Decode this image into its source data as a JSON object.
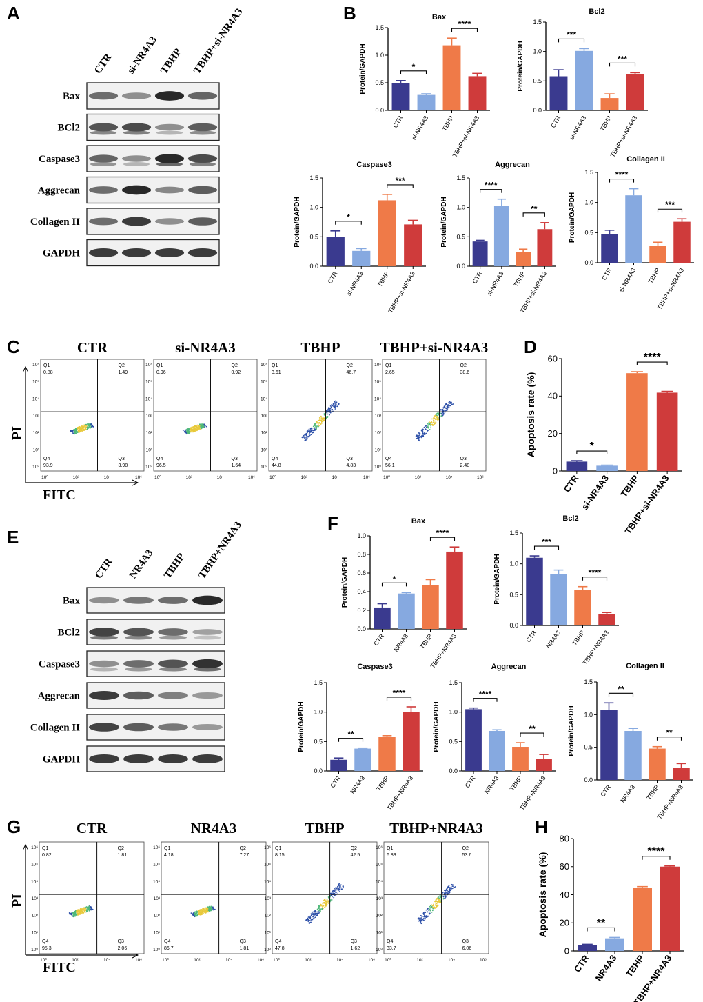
{
  "panel_letters": [
    "A",
    "B",
    "C",
    "D",
    "E",
    "F",
    "G",
    "H"
  ],
  "colors": {
    "navy": "#3a3a8f",
    "lightblue": "#86a9e0",
    "orange": "#ef7a48",
    "red": "#cf3b3b"
  },
  "blotA": {
    "lanes": [
      "CTR",
      "si-NR4A3",
      "TBHP",
      "TBHP+si-NR4A3"
    ],
    "rows": [
      {
        "label": "Bax",
        "intensity": [
          0.55,
          0.35,
          0.95,
          0.6
        ]
      },
      {
        "label": "BCl2",
        "intensity": [
          0.7,
          0.75,
          0.35,
          0.65
        ]
      },
      {
        "label": "Caspase3",
        "intensity": [
          0.6,
          0.35,
          0.95,
          0.75
        ]
      },
      {
        "label": "Aggrecan",
        "intensity": [
          0.55,
          0.95,
          0.4,
          0.65
        ]
      },
      {
        "label": "Collagen II",
        "intensity": [
          0.55,
          0.85,
          0.35,
          0.65
        ]
      },
      {
        "label": "GAPDH",
        "intensity": [
          0.85,
          0.85,
          0.85,
          0.85
        ]
      }
    ]
  },
  "blotE": {
    "lanes": [
      "CTR",
      "NR4A3",
      "TBHP",
      "TBHP+NR4A3"
    ],
    "rows": [
      {
        "label": "Bax",
        "intensity": [
          0.35,
          0.5,
          0.55,
          0.95
        ]
      },
      {
        "label": "BCl2",
        "intensity": [
          0.8,
          0.7,
          0.55,
          0.25
        ]
      },
      {
        "label": "Caspase3",
        "intensity": [
          0.35,
          0.55,
          0.7,
          0.9
        ]
      },
      {
        "label": "Aggrecan",
        "intensity": [
          0.85,
          0.65,
          0.45,
          0.3
        ]
      },
      {
        "label": "Collagen II",
        "intensity": [
          0.8,
          0.65,
          0.5,
          0.3
        ]
      },
      {
        "label": "GAPDH",
        "intensity": [
          0.85,
          0.85,
          0.85,
          0.85
        ]
      }
    ]
  },
  "flowC": {
    "axis_y": "PI",
    "axis_x": "FITC",
    "titles": [
      "CTR",
      "si-NR4A3",
      "TBHP",
      "TBHP+si-NR4A3"
    ],
    "quads": [
      {
        "q1": "0.88",
        "q2": "1.49",
        "q3": "3.98",
        "q4": "93.9"
      },
      {
        "q1": "0.96",
        "q2": "0.92",
        "q3": "1.64",
        "q4": "96.5"
      },
      {
        "q1": "3.61",
        "q2": "46.7",
        "q3": "4.83",
        "q4": "44.8"
      },
      {
        "q1": "2.65",
        "q2": "38.6",
        "q3": "2.48",
        "q4": "56.1"
      }
    ]
  },
  "flowG": {
    "axis_y": "PI",
    "axis_x": "FITC",
    "titles": [
      "CTR",
      "NR4A3",
      "TBHP",
      "TBHP+NR4A3"
    ],
    "quads": [
      {
        "q1": "0.82",
        "q2": "1.81",
        "q3": "2.06",
        "q4": "95.3"
      },
      {
        "q1": "4.18",
        "q2": "7.27",
        "q3": "1.81",
        "q4": "86.7"
      },
      {
        "q1": "8.15",
        "q2": "42.5",
        "q3": "1.62",
        "q4": "47.8"
      },
      {
        "q1": "6.83",
        "q2": "53.6",
        "q3": "6.06",
        "q4": "33.7"
      }
    ]
  },
  "chart_data": [
    {
      "id": "B-Bax",
      "type": "bar",
      "title": "Bax",
      "ylabel": "Protein/GAPDH",
      "ylim": [
        0,
        1.5
      ],
      "ticks": [
        "0.0",
        "0.5",
        "1.0",
        "1.5"
      ],
      "categories": [
        "CTR",
        "si-NR4A3",
        "TBHP",
        "TBHP+si-NR4A3"
      ],
      "values": [
        0.5,
        0.28,
        1.18,
        0.62
      ],
      "errors": [
        0.04,
        0.02,
        0.13,
        0.05
      ],
      "significance": [
        {
          "pair": [
            0,
            1
          ],
          "label": "*"
        },
        {
          "pair": [
            2,
            3
          ],
          "label": "****"
        }
      ]
    },
    {
      "id": "B-Bcl2",
      "type": "bar",
      "title": "Bcl2",
      "ylabel": "Protein/GAPDH",
      "ylim": [
        0,
        1.5
      ],
      "ticks": [
        "0.0",
        "0.5",
        "1.0",
        "1.5"
      ],
      "categories": [
        "CTR",
        "si-NR4A3",
        "TBHP",
        "TBHP+si-NR4A3"
      ],
      "values": [
        0.58,
        1.01,
        0.21,
        0.62
      ],
      "errors": [
        0.11,
        0.04,
        0.07,
        0.02
      ],
      "significance": [
        {
          "pair": [
            0,
            1
          ],
          "label": "***"
        },
        {
          "pair": [
            2,
            3
          ],
          "label": "***"
        }
      ]
    },
    {
      "id": "B-Caspase3",
      "type": "bar",
      "title": "Caspase3",
      "ylabel": "Protein/GAPDH",
      "ylim": [
        0,
        1.5
      ],
      "ticks": [
        "0.0",
        "0.5",
        "1.0",
        "1.5"
      ],
      "categories": [
        "CTR",
        "si-NR4A3",
        "TBHP",
        "TBHP+si-NR4A3"
      ],
      "values": [
        0.5,
        0.26,
        1.12,
        0.71
      ],
      "errors": [
        0.1,
        0.04,
        0.1,
        0.07
      ],
      "significance": [
        {
          "pair": [
            0,
            1
          ],
          "label": "*"
        },
        {
          "pair": [
            2,
            3
          ],
          "label": "***"
        }
      ]
    },
    {
      "id": "B-Aggrecan",
      "type": "bar",
      "title": "Aggrecan",
      "ylabel": "Protein/GAPDH",
      "ylim": [
        0,
        1.5
      ],
      "ticks": [
        "0.0",
        "0.5",
        "1.0",
        "1.5"
      ],
      "categories": [
        "CTR",
        "si-NR4A3",
        "TBHP",
        "TBHP+si-NR4A3"
      ],
      "values": [
        0.42,
        1.03,
        0.24,
        0.63
      ],
      "errors": [
        0.02,
        0.11,
        0.05,
        0.11
      ],
      "significance": [
        {
          "pair": [
            0,
            1
          ],
          "label": "****"
        },
        {
          "pair": [
            2,
            3
          ],
          "label": "**"
        }
      ]
    },
    {
      "id": "B-CollagenII",
      "type": "bar",
      "title": "Collagen II",
      "ylabel": "Protein/GAPDH",
      "ylim": [
        0,
        1.5
      ],
      "ticks": [
        "0.0",
        "0.5",
        "1.0",
        "1.5"
      ],
      "categories": [
        "CTR",
        "si-NR4A3",
        "TBHP",
        "TBHP+si-NR4A3"
      ],
      "values": [
        0.48,
        1.12,
        0.28,
        0.68
      ],
      "errors": [
        0.06,
        0.11,
        0.06,
        0.05
      ],
      "significance": [
        {
          "pair": [
            0,
            1
          ],
          "label": "****"
        },
        {
          "pair": [
            2,
            3
          ],
          "label": "***"
        }
      ]
    },
    {
      "id": "D",
      "type": "bar",
      "title": "",
      "ylabel": "Apoptosis rate (%)",
      "ylim": [
        0,
        60
      ],
      "ticks": [
        "0",
        "20",
        "40",
        "60"
      ],
      "categories": [
        "CTR",
        "si-NR4A3",
        "TBHP",
        "TBHP+si-NR4A3"
      ],
      "values": [
        5,
        2.8,
        52.2,
        41.8
      ],
      "errors": [
        0.5,
        0.3,
        0.8,
        0.7
      ],
      "significance": [
        {
          "pair": [
            0,
            1
          ],
          "label": "*"
        },
        {
          "pair": [
            2,
            3
          ],
          "label": "****"
        }
      ]
    },
    {
      "id": "F-Bax",
      "type": "bar",
      "title": "Bax",
      "ylabel": "Protein/GAPDH",
      "ylim": [
        0,
        1.0
      ],
      "ticks": [
        "0.0",
        "0.2",
        "0.4",
        "0.6",
        "0.8",
        "1.0"
      ],
      "categories": [
        "CTR",
        "NR4A3",
        "TBHP",
        "TBHP+NR4A3"
      ],
      "values": [
        0.23,
        0.38,
        0.47,
        0.83
      ],
      "errors": [
        0.04,
        0.01,
        0.06,
        0.05
      ],
      "significance": [
        {
          "pair": [
            0,
            1
          ],
          "label": "*"
        },
        {
          "pair": [
            2,
            3
          ],
          "label": "****"
        }
      ]
    },
    {
      "id": "F-Bcl2",
      "type": "bar",
      "title": "Bcl2",
      "ylabel": "Protein/GAPDH",
      "ylim": [
        0,
        1.5
      ],
      "ticks": [
        "0.0",
        "0.5",
        "1.0",
        "1.5"
      ],
      "categories": [
        "CTR",
        "NR4A3",
        "TBHP",
        "TBHP+NR4A3"
      ],
      "values": [
        1.1,
        0.83,
        0.58,
        0.19
      ],
      "errors": [
        0.03,
        0.07,
        0.05,
        0.02
      ],
      "significance": [
        {
          "pair": [
            0,
            1
          ],
          "label": "***"
        },
        {
          "pair": [
            2,
            3
          ],
          "label": "****"
        }
      ]
    },
    {
      "id": "F-Caspase3",
      "type": "bar",
      "title": "Caspase3",
      "ylabel": "Protein/GAPDH",
      "ylim": [
        0,
        1.5
      ],
      "ticks": [
        "0.0",
        "0.5",
        "1.0",
        "1.5"
      ],
      "categories": [
        "CTR",
        "NR4A3",
        "TBHP",
        "TBHP+NR4A3"
      ],
      "values": [
        0.19,
        0.38,
        0.58,
        1.0
      ],
      "errors": [
        0.03,
        0.01,
        0.02,
        0.09
      ],
      "significance": [
        {
          "pair": [
            0,
            1
          ],
          "label": "**"
        },
        {
          "pair": [
            2,
            3
          ],
          "label": "****"
        }
      ]
    },
    {
      "id": "F-Aggrecan",
      "type": "bar",
      "title": "Aggrecan",
      "ylabel": "Protein/GAPDH",
      "ylim": [
        0,
        1.5
      ],
      "ticks": [
        "0.0",
        "0.5",
        "1.0",
        "1.5"
      ],
      "categories": [
        "CTR",
        "NR4A3",
        "TBHP",
        "TBHP+NR4A3"
      ],
      "values": [
        1.05,
        0.68,
        0.41,
        0.21
      ],
      "errors": [
        0.02,
        0.02,
        0.07,
        0.07
      ],
      "significance": [
        {
          "pair": [
            0,
            1
          ],
          "label": "****"
        },
        {
          "pair": [
            2,
            3
          ],
          "label": "**"
        }
      ]
    },
    {
      "id": "F-CollagenII",
      "type": "bar",
      "title": "Collagen II",
      "ylabel": "Protein/GAPDH",
      "ylim": [
        0,
        1.5
      ],
      "ticks": [
        "0.0",
        "0.5",
        "1.0",
        "1.5"
      ],
      "categories": [
        "CTR",
        "NR4A3",
        "TBHP",
        "TBHP+NR4A3"
      ],
      "values": [
        1.07,
        0.75,
        0.48,
        0.19
      ],
      "errors": [
        0.11,
        0.04,
        0.03,
        0.06
      ],
      "significance": [
        {
          "pair": [
            0,
            1
          ],
          "label": "**"
        },
        {
          "pair": [
            2,
            3
          ],
          "label": "**"
        }
      ]
    },
    {
      "id": "H",
      "type": "bar",
      "title": "",
      "ylabel": "Apoptosis rate (%)",
      "ylim": [
        0,
        80
      ],
      "ticks": [
        "0",
        "20",
        "40",
        "60",
        "80"
      ],
      "categories": [
        "CTR",
        "NR4A3",
        "TBHP",
        "TBHP+NR4A3"
      ],
      "values": [
        4.2,
        9,
        45,
        60
      ],
      "errors": [
        0.5,
        0.6,
        0.8,
        0.5
      ],
      "significance": [
        {
          "pair": [
            0,
            1
          ],
          "label": "**"
        },
        {
          "pair": [
            2,
            3
          ],
          "label": "****"
        }
      ]
    }
  ]
}
